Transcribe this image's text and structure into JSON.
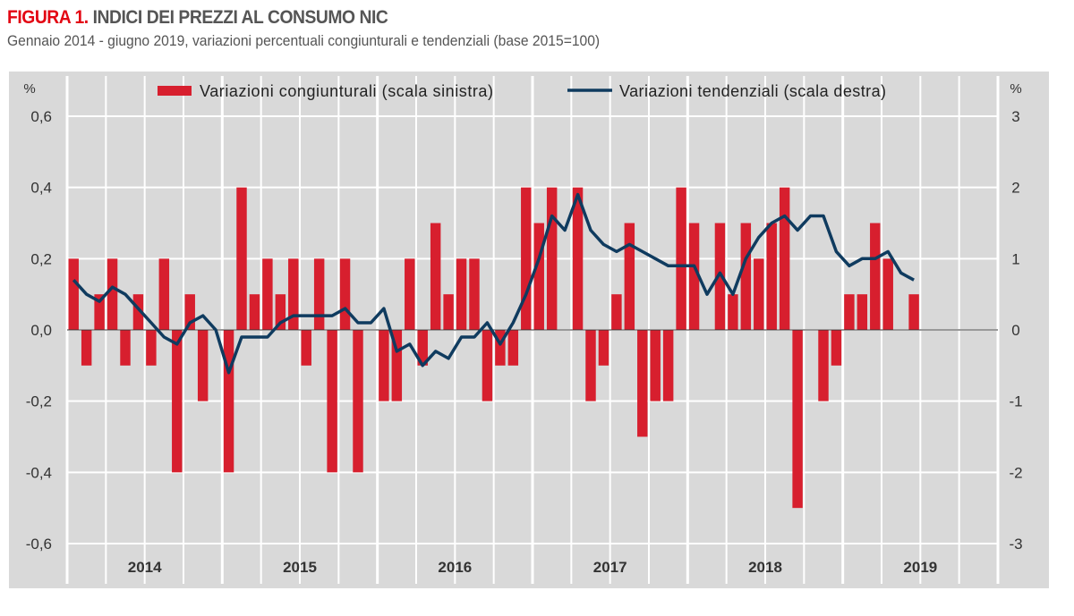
{
  "title_prefix": "FIGURA 1.",
  "title": "INDICI DEI PREZZI AL CONSUMO NIC",
  "subtitle": "Gennaio 2014 - giugno 2019, variazioni percentuali congiunturali e tendenziali (base 2015=100)",
  "chart_data": {
    "type": "bar+line",
    "x_start": "2014-01",
    "x_end": "2019-06",
    "frequency": "monthly",
    "x_tick_labels": [
      "2014",
      "2015",
      "2016",
      "2017",
      "2018",
      "2019"
    ],
    "x_range": [
      "2014-01",
      "2019-12"
    ],
    "left_axis": {
      "label": "%",
      "ylim": [
        -0.6,
        0.6
      ],
      "ticks": [
        "0,6",
        "0,4",
        "0,2",
        "0,0",
        "-0,2",
        "-0,4",
        "-0,6"
      ]
    },
    "right_axis": {
      "label": "%",
      "ylim": [
        -3,
        3
      ],
      "ticks": [
        "3",
        "2",
        "1",
        "0",
        "-1",
        "-2",
        "-3"
      ]
    },
    "grid": true,
    "legend_placement": "top",
    "series": [
      {
        "name": "Variazioni congiunturali (scala sinistra)",
        "type": "bar",
        "axis": "left",
        "color": "#d71f2e",
        "values": [
          0.2,
          -0.1,
          0.1,
          0.2,
          -0.1,
          0.1,
          -0.1,
          0.2,
          -0.4,
          0.1,
          -0.2,
          0.0,
          -0.4,
          0.4,
          0.1,
          0.2,
          0.1,
          0.2,
          -0.1,
          0.2,
          -0.4,
          0.2,
          -0.4,
          0.0,
          -0.2,
          -0.2,
          0.2,
          -0.1,
          0.3,
          0.1,
          0.2,
          0.2,
          -0.2,
          -0.1,
          -0.1,
          0.4,
          0.3,
          0.4,
          0.0,
          0.4,
          -0.2,
          -0.1,
          0.1,
          0.3,
          -0.3,
          -0.2,
          -0.2,
          0.4,
          0.3,
          0.0,
          0.3,
          0.1,
          0.3,
          0.2,
          0.3,
          0.4,
          -0.5,
          0.0,
          -0.2,
          -0.1,
          0.1,
          0.1,
          0.3,
          0.2,
          0.0,
          0.1
        ]
      },
      {
        "name": "Variazioni tendenziali (scala destra)",
        "type": "line",
        "axis": "right",
        "color": "#0f3b5f",
        "values": [
          0.7,
          0.5,
          0.4,
          0.6,
          0.5,
          0.3,
          0.1,
          -0.1,
          -0.2,
          0.1,
          0.2,
          0.0,
          -0.6,
          -0.1,
          -0.1,
          -0.1,
          0.1,
          0.2,
          0.2,
          0.2,
          0.2,
          0.3,
          0.1,
          0.1,
          0.3,
          -0.3,
          -0.2,
          -0.5,
          -0.3,
          -0.4,
          -0.1,
          -0.1,
          0.1,
          -0.2,
          0.1,
          0.5,
          1.0,
          1.6,
          1.4,
          1.9,
          1.4,
          1.2,
          1.1,
          1.2,
          1.1,
          1.0,
          0.9,
          0.9,
          0.9,
          0.5,
          0.8,
          0.5,
          1.0,
          1.3,
          1.5,
          1.6,
          1.4,
          1.6,
          1.6,
          1.1,
          0.9,
          1.0,
          1.0,
          1.1,
          0.8,
          0.7
        ]
      }
    ]
  }
}
